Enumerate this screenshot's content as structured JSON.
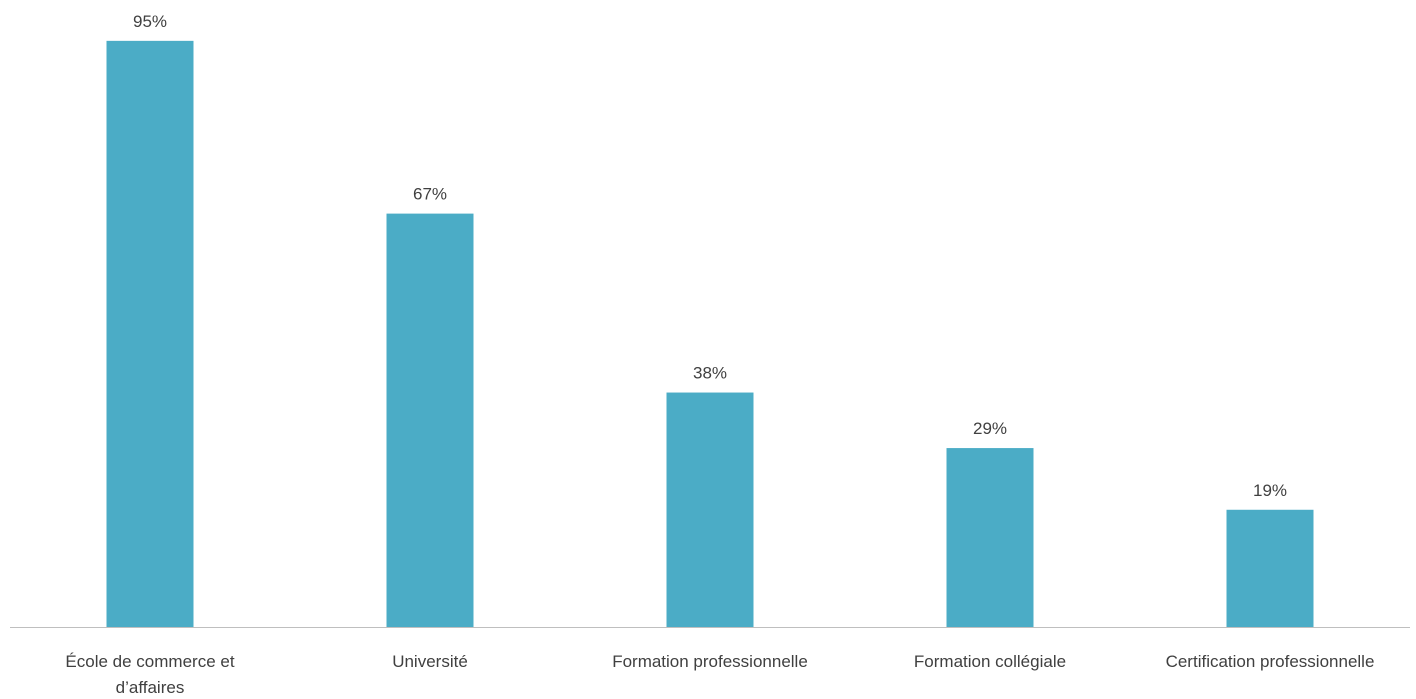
{
  "colors": {
    "bar": "#4bacc6",
    "axis": "#bfbfbf",
    "text": "#404040"
  },
  "chart_data": {
    "type": "bar",
    "title": "",
    "xlabel": "",
    "ylabel": "",
    "ylim": [
      0,
      100
    ],
    "grid": false,
    "categories": [
      [
        "École de commerce et",
        "d’affaires"
      ],
      [
        "Université"
      ],
      [
        "Formation professionnelle"
      ],
      [
        "Formation collégiale"
      ],
      [
        "Certification professionnelle"
      ]
    ],
    "values": [
      95,
      67,
      38,
      29,
      19
    ],
    "value_labels": [
      "95%",
      "67%",
      "38%",
      "29%",
      "19%"
    ]
  }
}
